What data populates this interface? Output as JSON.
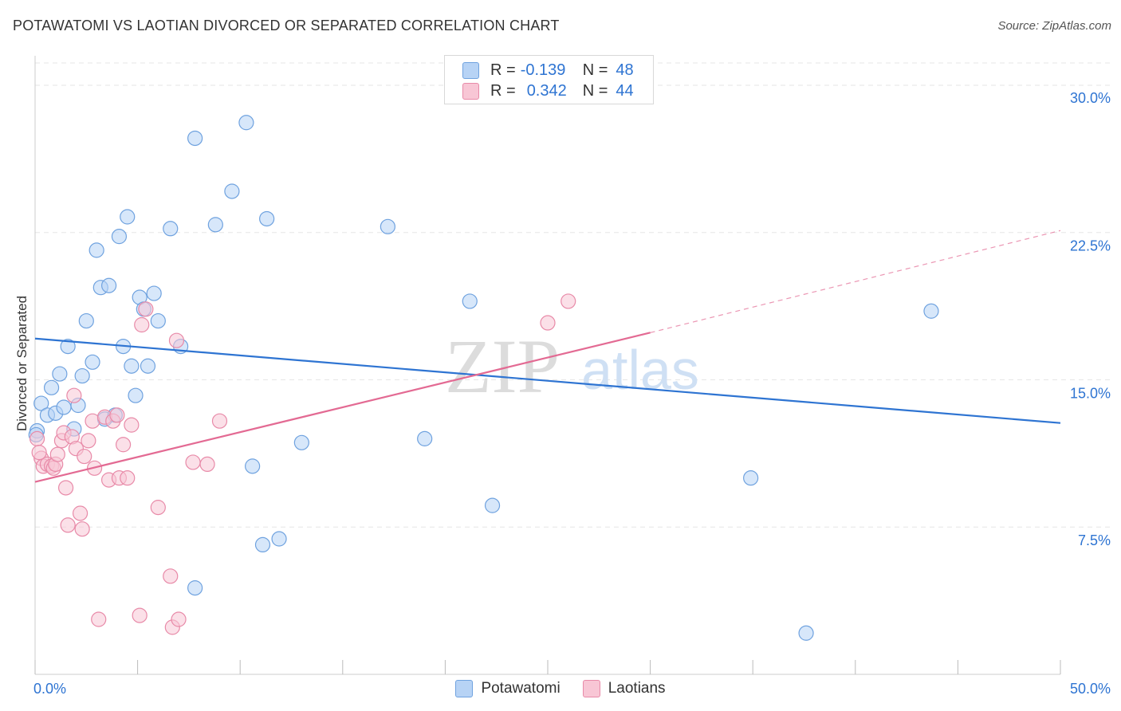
{
  "title": "POTAWATOMI VS LAOTIAN DIVORCED OR SEPARATED CORRELATION CHART",
  "source": "Source: ZipAtlas.com",
  "watermark": {
    "zip": "ZIP",
    "atlas": "atlas"
  },
  "legend_top": {
    "rows": [
      {
        "r_label": "R =",
        "r_value": "-0.139",
        "n_label": "N =",
        "n_value": "48"
      },
      {
        "r_label": "R =",
        "r_value": "0.342",
        "n_label": "N =",
        "n_value": "44"
      }
    ]
  },
  "legend_bottom": {
    "series1": "Potawatomi",
    "series2": "Laotians"
  },
  "colors": {
    "blue_fill": "#b7d3f5",
    "blue_stroke": "#6fa2df",
    "blue_line": "#2e74d2",
    "pink_fill": "#f8c6d5",
    "pink_stroke": "#e88aa8",
    "pink_line": "#e36a93",
    "tick_text": "#2e74d2",
    "grid": "#e6e6e6"
  },
  "chart_data": {
    "type": "scatter",
    "title": "POTAWATOMI VS LAOTIAN DIVORCED OR SEPARATED CORRELATION CHART",
    "xlabel": "",
    "ylabel": "Divorced or Separated",
    "xlim": [
      0,
      50
    ],
    "ylim": [
      0,
      31.5
    ],
    "x_tick_labels": [
      {
        "value": 0,
        "label": "0.0%"
      },
      {
        "value": 50,
        "label": "50.0%"
      }
    ],
    "y_tick_labels": [
      {
        "value": 7.5,
        "label": "7.5%"
      },
      {
        "value": 15,
        "label": "15.0%"
      },
      {
        "value": 22.5,
        "label": "22.5%"
      },
      {
        "value": 30,
        "label": "30.0%"
      }
    ],
    "series": [
      {
        "name": "Potawatomi",
        "color": "#b7d3f5",
        "r": -0.139,
        "n": 48,
        "trend": {
          "x0": 0,
          "y0": 17.1,
          "x1": 50,
          "y1": 12.8
        },
        "points": [
          [
            0.1,
            12.4
          ],
          [
            0.3,
            13.8
          ],
          [
            0.6,
            13.2
          ],
          [
            0.8,
            14.6
          ],
          [
            1.0,
            13.3
          ],
          [
            1.2,
            15.3
          ],
          [
            1.4,
            13.6
          ],
          [
            1.6,
            16.7
          ],
          [
            1.9,
            12.5
          ],
          [
            2.1,
            13.7
          ],
          [
            2.3,
            15.2
          ],
          [
            2.5,
            18.0
          ],
          [
            2.8,
            15.9
          ],
          [
            3.0,
            21.6
          ],
          [
            3.2,
            19.7
          ],
          [
            3.4,
            13.0
          ],
          [
            3.6,
            19.8
          ],
          [
            3.9,
            13.2
          ],
          [
            4.1,
            22.3
          ],
          [
            4.3,
            16.7
          ],
          [
            4.5,
            23.3
          ],
          [
            4.7,
            15.7
          ],
          [
            4.9,
            14.2
          ],
          [
            5.1,
            19.2
          ],
          [
            5.3,
            18.6
          ],
          [
            5.5,
            15.7
          ],
          [
            5.8,
            19.4
          ],
          [
            6.0,
            18.0
          ],
          [
            6.6,
            22.7
          ],
          [
            7.1,
            16.7
          ],
          [
            7.8,
            27.3
          ],
          [
            7.8,
            4.4
          ],
          [
            8.8,
            22.9
          ],
          [
            9.6,
            24.6
          ],
          [
            10.3,
            28.1
          ],
          [
            10.6,
            10.6
          ],
          [
            11.1,
            6.6
          ],
          [
            11.3,
            23.2
          ],
          [
            11.9,
            6.9
          ],
          [
            13.0,
            11.8
          ],
          [
            17.2,
            22.8
          ],
          [
            19.0,
            12.0
          ],
          [
            21.2,
            19.0
          ],
          [
            22.3,
            8.6
          ],
          [
            34.9,
            10.0
          ],
          [
            37.6,
            2.1
          ],
          [
            43.7,
            18.5
          ],
          [
            0.05,
            12.2
          ]
        ]
      },
      {
        "name": "Laotians",
        "color": "#f8c6d5",
        "r": 0.342,
        "n": 44,
        "trend": {
          "x0": 0,
          "y0": 9.8,
          "x1": 30,
          "y1": 17.4,
          "dash_x1": 50,
          "dash_y1": 22.6
        },
        "points": [
          [
            0.1,
            12.0
          ],
          [
            0.3,
            11.0
          ],
          [
            0.4,
            10.6
          ],
          [
            0.6,
            10.7
          ],
          [
            0.8,
            10.6
          ],
          [
            0.9,
            10.5
          ],
          [
            1.0,
            10.7
          ],
          [
            1.1,
            11.2
          ],
          [
            1.3,
            11.9
          ],
          [
            1.4,
            12.3
          ],
          [
            1.5,
            9.5
          ],
          [
            1.6,
            7.6
          ],
          [
            1.8,
            12.1
          ],
          [
            1.9,
            14.2
          ],
          [
            2.0,
            11.5
          ],
          [
            2.2,
            8.2
          ],
          [
            2.3,
            7.4
          ],
          [
            2.4,
            11.1
          ],
          [
            2.6,
            11.9
          ],
          [
            2.8,
            12.9
          ],
          [
            2.9,
            10.5
          ],
          [
            3.1,
            2.8
          ],
          [
            3.4,
            13.1
          ],
          [
            3.6,
            9.9
          ],
          [
            3.8,
            12.9
          ],
          [
            4.0,
            13.2
          ],
          [
            4.1,
            10.0
          ],
          [
            4.3,
            11.7
          ],
          [
            4.5,
            10.0
          ],
          [
            4.7,
            12.7
          ],
          [
            5.1,
            3.0
          ],
          [
            5.2,
            17.8
          ],
          [
            5.4,
            18.6
          ],
          [
            6.0,
            8.5
          ],
          [
            6.6,
            5.0
          ],
          [
            6.7,
            2.4
          ],
          [
            6.9,
            17.0
          ],
          [
            7.0,
            2.8
          ],
          [
            7.7,
            10.8
          ],
          [
            8.4,
            10.7
          ],
          [
            9.0,
            12.9
          ],
          [
            25.0,
            17.9
          ],
          [
            26.0,
            19.0
          ],
          [
            0.2,
            11.3
          ]
        ]
      }
    ]
  }
}
